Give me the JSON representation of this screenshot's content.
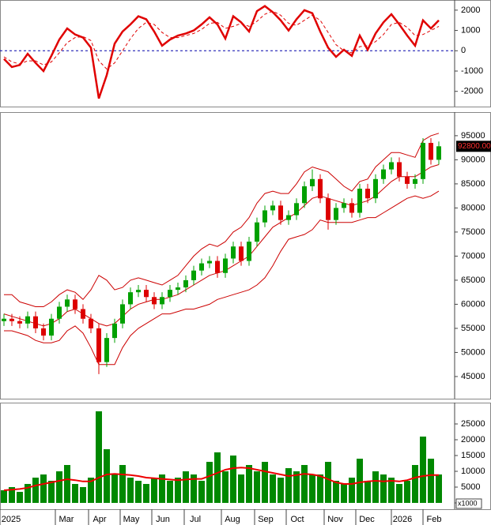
{
  "chart_data": [
    {
      "type": "line",
      "xlim": [
        -0.5,
        57
      ],
      "ylim": [
        -2750,
        2500
      ],
      "yticks": [
        -2000,
        -1000,
        0,
        1000,
        2000
      ],
      "zero_line_color": "#0000aa",
      "series": [
        {
          "color": "#e00000",
          "values": [
            -400,
            -800,
            -700,
            -150,
            -600,
            -1000,
            -250,
            550,
            1100,
            800,
            650,
            150,
            -2350,
            -1200,
            350,
            950,
            1300,
            1700,
            1550,
            950,
            250,
            550,
            750,
            850,
            1000,
            1300,
            1650,
            1300,
            600,
            1700,
            1400,
            950,
            1950,
            2200,
            1900,
            1500,
            1000,
            1550,
            2000,
            1850,
            950,
            150,
            -300,
            50,
            -250,
            750,
            50,
            850,
            1400,
            1800,
            1300,
            750,
            250,
            1500,
            1100,
            1500
          ]
        },
        {
          "color": "#e00000",
          "dashed": true,
          "values": [
            -300,
            -550,
            -650,
            -500,
            -500,
            -700,
            -550,
            -100,
            400,
            650,
            700,
            500,
            -500,
            -900,
            -600,
            0,
            600,
            1100,
            1400,
            1300,
            900,
            650,
            650,
            750,
            850,
            1050,
            1350,
            1400,
            1100,
            1200,
            1350,
            1200,
            1450,
            1800,
            1950,
            1750,
            1350,
            1250,
            1500,
            1750,
            1500,
            900,
            300,
            0,
            -100,
            200,
            250,
            450,
            800,
            1300,
            1400,
            1150,
            750,
            800,
            1000,
            1200
          ]
        }
      ]
    },
    {
      "type": "candlestick",
      "xlim": [
        -0.5,
        57
      ],
      "ylim": [
        40400,
        99900
      ],
      "yticks": [
        45000,
        50000,
        55000,
        60000,
        65000,
        70000,
        75000,
        80000,
        85000,
        90000,
        95000
      ],
      "up_color": "#00a000",
      "down_color": "#dd0000",
      "open": [
        56500,
        57000,
        56500,
        56000,
        57500,
        55000,
        53500,
        57000,
        59500,
        61000,
        59000,
        57000,
        55000,
        48000,
        53000,
        56000,
        60000,
        62500,
        63000,
        61500,
        60000,
        61500,
        63000,
        63500,
        65000,
        67000,
        68500,
        69000,
        66500,
        69500,
        72000,
        69000,
        73000,
        77000,
        79500,
        80500,
        77500,
        78500,
        81000,
        84500,
        86000,
        82000,
        77500,
        80000,
        81000,
        79000,
        84000,
        82000,
        86000,
        88000,
        89500,
        86500,
        85000,
        86000,
        93500,
        90000
      ],
      "high": [
        58000,
        58000,
        57500,
        58500,
        58500,
        56000,
        58000,
        60500,
        62000,
        62000,
        60000,
        58000,
        56000,
        54000,
        57000,
        61000,
        63500,
        64000,
        64000,
        62500,
        62500,
        64000,
        64500,
        66000,
        68000,
        69500,
        70000,
        70000,
        70500,
        73000,
        73000,
        74000,
        78000,
        80500,
        81500,
        81500,
        79500,
        82000,
        85500,
        88000,
        87000,
        83000,
        81000,
        82000,
        82000,
        85000,
        85000,
        87000,
        89000,
        90500,
        90500,
        87500,
        87000,
        94500,
        94500,
        93800
      ],
      "low": [
        55500,
        55500,
        55000,
        55000,
        54000,
        52500,
        52500,
        56000,
        58500,
        58000,
        56000,
        54000,
        45500,
        47000,
        52000,
        55000,
        59000,
        61500,
        60500,
        59000,
        59000,
        60500,
        62000,
        62500,
        64000,
        66000,
        67500,
        65500,
        65500,
        68500,
        68000,
        68000,
        72000,
        76000,
        78500,
        76500,
        76500,
        77500,
        80000,
        83500,
        81000,
        75500,
        76500,
        79000,
        78000,
        78000,
        81000,
        81000,
        85000,
        87000,
        85500,
        84000,
        84000,
        85000,
        89000,
        89000
      ],
      "close": [
        57000,
        56500,
        56000,
        57500,
        55000,
        53500,
        57000,
        59500,
        61000,
        59000,
        57000,
        55000,
        48000,
        53000,
        56000,
        60000,
        62500,
        63000,
        61500,
        60000,
        61500,
        63000,
        63500,
        65000,
        67000,
        68500,
        69000,
        66500,
        69500,
        72000,
        69000,
        73000,
        77000,
        79500,
        80500,
        77500,
        78500,
        81000,
        84500,
        86000,
        82000,
        77500,
        80000,
        81000,
        79000,
        84000,
        82000,
        86000,
        88000,
        89500,
        86500,
        85000,
        86000,
        93500,
        90000,
        92800
      ],
      "bands": [
        {
          "color": "#cc0000",
          "values": [
            62000,
            62000,
            60500,
            60000,
            59500,
            59500,
            60500,
            62000,
            63000,
            62500,
            61000,
            63000,
            66000,
            65000,
            63000,
            63500,
            65000,
            65500,
            65000,
            64500,
            64000,
            65000,
            66000,
            68000,
            70000,
            71500,
            72500,
            72000,
            73000,
            75000,
            76000,
            78000,
            81000,
            83000,
            83500,
            83000,
            83000,
            85000,
            87500,
            88500,
            88000,
            87500,
            86000,
            84500,
            83500,
            85500,
            86000,
            88500,
            90000,
            91500,
            91500,
            91000,
            90500,
            94000,
            95000,
            95500
          ]
        },
        {
          "color": "#cc0000",
          "values": [
            58000,
            57500,
            57000,
            56500,
            56000,
            55500,
            56000,
            57000,
            58500,
            59000,
            58000,
            57000,
            56000,
            55500,
            56000,
            57500,
            59000,
            60000,
            60500,
            61000,
            61000,
            61500,
            62000,
            63000,
            64000,
            65000,
            66000,
            66500,
            67000,
            68000,
            69000,
            70000,
            72000,
            74000,
            76000,
            77000,
            78000,
            79000,
            80500,
            82000,
            82500,
            82000,
            81500,
            81000,
            80500,
            81000,
            81500,
            82500,
            84000,
            85500,
            86500,
            86500,
            86500,
            87500,
            88500,
            89000
          ]
        },
        {
          "color": "#cc0000",
          "values": [
            54500,
            54500,
            54000,
            53500,
            52500,
            52000,
            52000,
            52500,
            54500,
            55500,
            54000,
            51000,
            47500,
            47500,
            47500,
            51000,
            53500,
            55000,
            56000,
            57000,
            58000,
            58000,
            58500,
            59000,
            59000,
            59500,
            60000,
            61000,
            61500,
            62000,
            62500,
            63000,
            64000,
            65500,
            68000,
            71000,
            73500,
            74000,
            74500,
            75500,
            77500,
            77000,
            77000,
            77000,
            77000,
            77500,
            78000,
            78000,
            79000,
            80000,
            81000,
            82000,
            82500,
            82000,
            82500,
            83500
          ]
        }
      ],
      "last_label": {
        "value": 92800,
        "label": "92800.00"
      }
    },
    {
      "type": "bar",
      "xlim": [
        -0.5,
        57
      ],
      "ylim": [
        -2000,
        31750
      ],
      "yticks": [
        0,
        5000,
        10000,
        15000,
        20000,
        25000
      ],
      "unit_label": "x1000",
      "color": "#008800",
      "values": [
        4000,
        5000,
        3500,
        6000,
        8000,
        9000,
        7000,
        10000,
        12000,
        6000,
        5000,
        8000,
        29000,
        17000,
        9000,
        12000,
        8000,
        7000,
        6000,
        8000,
        9000,
        7000,
        8000,
        10000,
        9000,
        7000,
        13000,
        16000,
        10000,
        15000,
        9000,
        12000,
        10000,
        13000,
        9000,
        8000,
        11000,
        10000,
        12000,
        9000,
        9000,
        13000,
        7000,
        6000,
        8000,
        14000,
        7000,
        10000,
        9000,
        8000,
        6000,
        7000,
        12000,
        21000,
        14000,
        9000
      ],
      "series": [
        {
          "color": "#ee0000",
          "values": [
            4000,
            4200,
            4400,
            4800,
            5500,
            6000,
            6500,
            7000,
            7500,
            7200,
            6800,
            6800,
            8000,
            9000,
            9200,
            9000,
            8800,
            8500,
            8000,
            7800,
            7600,
            7400,
            7200,
            7400,
            7600,
            7600,
            8500,
            9500,
            10500,
            11000,
            11200,
            11000,
            10500,
            10000,
            9500,
            9000,
            8500,
            8800,
            9200,
            9000,
            8500,
            7500,
            6500,
            6000,
            6000,
            6500,
            6800,
            7000,
            6800,
            7000,
            6800,
            7200,
            8000,
            8500,
            8800,
            8800
          ]
        }
      ],
      "xticks": [
        {
          "value": -0.5,
          "label": "2025"
        },
        {
          "value": 6.5,
          "label": "Mar"
        },
        {
          "value": 10.7,
          "label": "Apr"
        },
        {
          "value": 14.7,
          "label": "May"
        },
        {
          "value": 18.7,
          "label": "Jun"
        },
        {
          "value": 22.8,
          "label": "Jul"
        },
        {
          "value": 27.5,
          "label": "Aug"
        },
        {
          "value": 31.7,
          "label": "Sep"
        },
        {
          "value": 35.7,
          "label": "Oct"
        },
        {
          "value": 40.5,
          "label": "Nov"
        },
        {
          "value": 44.5,
          "label": "Dec"
        },
        {
          "value": 49,
          "label": "2026"
        },
        {
          "value": 53,
          "label": "Feb"
        }
      ]
    }
  ]
}
